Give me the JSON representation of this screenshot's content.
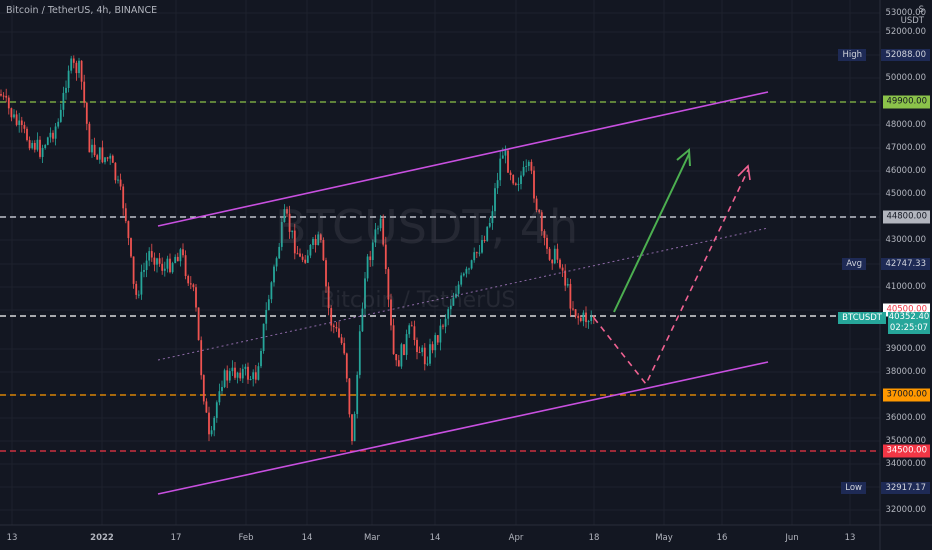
{
  "header": {
    "title": "Bitcoin / TetherUS, 4h, BINANCE",
    "currency_top": "S",
    "currency": "USDT"
  },
  "watermark": {
    "symbol": "BTCUSDT, 4h",
    "name": "Bitcoin / TetherUS"
  },
  "y_axis": {
    "ticks": [
      "53000.00",
      "52000.00",
      "51000.00",
      "50000.00",
      "49000.00",
      "48000.00",
      "47000.00",
      "46000.00",
      "45000.00",
      "44000.00",
      "43000.00",
      "42000.00",
      "41000.00",
      "40000.00",
      "39000.00",
      "38000.00",
      "37000.00",
      "36000.00",
      "35000.00",
      "34000.00",
      "33000.00",
      "32000.00"
    ]
  },
  "x_axis": {
    "ticks": [
      "13",
      "2022",
      "17",
      "Feb",
      "14",
      "Mar",
      "14",
      "Apr",
      "18",
      "May",
      "16",
      "Jun",
      "13"
    ]
  },
  "levels": [
    {
      "label": "49900.00",
      "color": "#8bc34a",
      "text_color": "#131722"
    },
    {
      "label": "44800.00",
      "color": "#b2b5be",
      "text_color": "#131722"
    },
    {
      "label": "40500.00",
      "color": "#ffffff",
      "text_color": "#f23645"
    },
    {
      "label": "37000.00",
      "color": "#ff9800",
      "text_color": "#131722"
    },
    {
      "label": "34500.00",
      "color": "#f23645",
      "text_color": "#ffffff"
    }
  ],
  "markers": {
    "high": {
      "tag": "High",
      "value": "52088.00"
    },
    "avg": {
      "tag": "Avg",
      "value": "42747.33"
    },
    "symbol": {
      "tag": "BTCUSDT",
      "value": "40352.40",
      "countdown": "02:25:07"
    },
    "low": {
      "tag": "Low",
      "value": "32917.17"
    }
  },
  "colors": {
    "background": "#131722",
    "up": "#26a69a",
    "down": "#ef5350",
    "channel": "#c850e0",
    "arrow_up": "#4caf50",
    "projection": "#f06292"
  }
}
